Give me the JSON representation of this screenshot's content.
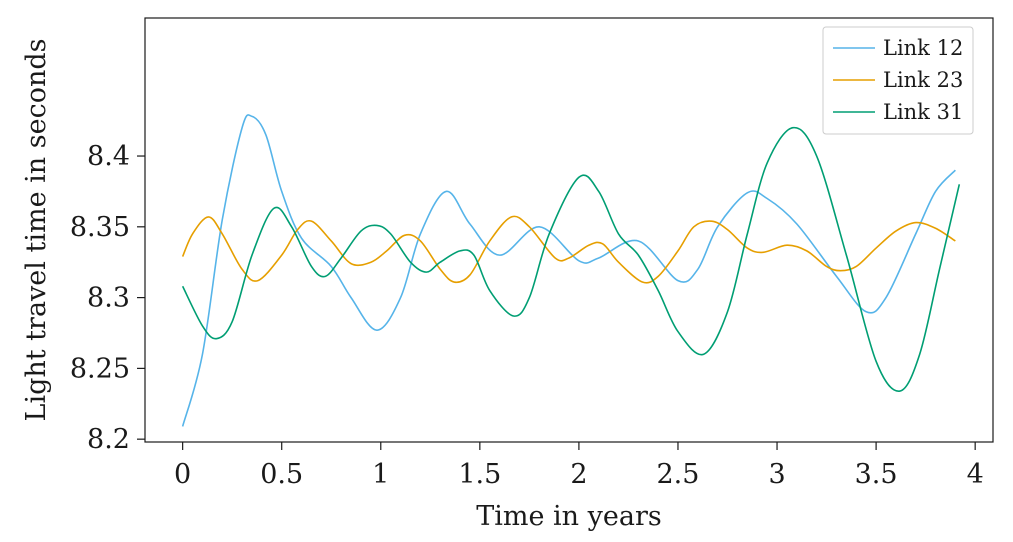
{
  "chart_data": {
    "type": "line",
    "xlabel": "Time in years",
    "ylabel": "Light travel time in seconds",
    "xlim": [
      -0.19,
      4.09
    ],
    "ylim": [
      8.198,
      8.4975
    ],
    "xticks": [
      0,
      0.5,
      1,
      1.5,
      2,
      2.5,
      3,
      3.5,
      4
    ],
    "xtick_labels": [
      "0",
      "0.5",
      "1",
      "1.5",
      "2",
      "2.5",
      "3",
      "3.5",
      "4"
    ],
    "yticks": [
      8.2,
      8.25,
      8.3,
      8.35,
      8.4
    ],
    "ytick_labels": [
      "8.2",
      "8.25",
      "8.3",
      "8.35",
      "8.4"
    ],
    "grid": false,
    "legend_position": "top-right",
    "series": [
      {
        "name": "Link 12",
        "color": "#56B4E9",
        "points": [
          [
            0.0,
            8.209
          ],
          [
            0.1,
            8.26
          ],
          [
            0.2,
            8.355
          ],
          [
            0.3,
            8.42
          ],
          [
            0.35,
            8.428
          ],
          [
            0.42,
            8.415
          ],
          [
            0.5,
            8.375
          ],
          [
            0.6,
            8.342
          ],
          [
            0.75,
            8.322
          ],
          [
            0.85,
            8.3
          ],
          [
            0.98,
            8.277
          ],
          [
            1.1,
            8.3
          ],
          [
            1.2,
            8.345
          ],
          [
            1.33,
            8.375
          ],
          [
            1.45,
            8.352
          ],
          [
            1.6,
            8.33
          ],
          [
            1.8,
            8.35
          ],
          [
            2.0,
            8.326
          ],
          [
            2.1,
            8.328
          ],
          [
            2.3,
            8.34
          ],
          [
            2.5,
            8.312
          ],
          [
            2.6,
            8.32
          ],
          [
            2.7,
            8.35
          ],
          [
            2.85,
            8.374
          ],
          [
            2.95,
            8.37
          ],
          [
            3.1,
            8.352
          ],
          [
            3.3,
            8.315
          ],
          [
            3.45,
            8.29
          ],
          [
            3.55,
            8.3
          ],
          [
            3.7,
            8.345
          ],
          [
            3.8,
            8.375
          ],
          [
            3.9,
            8.39
          ]
        ]
      },
      {
        "name": "Link 23",
        "color": "#E69F00",
        "points": [
          [
            0.0,
            8.329
          ],
          [
            0.05,
            8.345
          ],
          [
            0.13,
            8.357
          ],
          [
            0.2,
            8.345
          ],
          [
            0.3,
            8.32
          ],
          [
            0.38,
            8.312
          ],
          [
            0.5,
            8.33
          ],
          [
            0.58,
            8.348
          ],
          [
            0.65,
            8.354
          ],
          [
            0.75,
            8.34
          ],
          [
            0.85,
            8.324
          ],
          [
            0.95,
            8.325
          ],
          [
            1.03,
            8.333
          ],
          [
            1.12,
            8.344
          ],
          [
            1.2,
            8.34
          ],
          [
            1.3,
            8.32
          ],
          [
            1.37,
            8.311
          ],
          [
            1.45,
            8.316
          ],
          [
            1.55,
            8.34
          ],
          [
            1.66,
            8.357
          ],
          [
            1.75,
            8.35
          ],
          [
            1.88,
            8.328
          ],
          [
            1.95,
            8.328
          ],
          [
            2.05,
            8.337
          ],
          [
            2.12,
            8.338
          ],
          [
            2.2,
            8.325
          ],
          [
            2.32,
            8.311
          ],
          [
            2.4,
            8.315
          ],
          [
            2.5,
            8.333
          ],
          [
            2.58,
            8.35
          ],
          [
            2.67,
            8.354
          ],
          [
            2.75,
            8.348
          ],
          [
            2.85,
            8.335
          ],
          [
            2.93,
            8.332
          ],
          [
            3.05,
            8.337
          ],
          [
            3.15,
            8.333
          ],
          [
            3.25,
            8.322
          ],
          [
            3.32,
            8.319
          ],
          [
            3.4,
            8.322
          ],
          [
            3.5,
            8.335
          ],
          [
            3.6,
            8.347
          ],
          [
            3.7,
            8.353
          ],
          [
            3.8,
            8.349
          ],
          [
            3.9,
            8.34
          ]
        ]
      },
      {
        "name": "Link 31",
        "color": "#009E73",
        "points": [
          [
            0.0,
            8.308
          ],
          [
            0.1,
            8.28
          ],
          [
            0.17,
            8.271
          ],
          [
            0.25,
            8.283
          ],
          [
            0.35,
            8.33
          ],
          [
            0.46,
            8.363
          ],
          [
            0.55,
            8.35
          ],
          [
            0.65,
            8.322
          ],
          [
            0.72,
            8.315
          ],
          [
            0.8,
            8.328
          ],
          [
            0.9,
            8.347
          ],
          [
            0.98,
            8.351
          ],
          [
            1.05,
            8.345
          ],
          [
            1.15,
            8.325
          ],
          [
            1.23,
            8.318
          ],
          [
            1.3,
            8.325
          ],
          [
            1.4,
            8.333
          ],
          [
            1.47,
            8.33
          ],
          [
            1.55,
            8.305
          ],
          [
            1.67,
            8.287
          ],
          [
            1.75,
            8.3
          ],
          [
            1.85,
            8.345
          ],
          [
            2.0,
            8.385
          ],
          [
            2.1,
            8.375
          ],
          [
            2.2,
            8.345
          ],
          [
            2.3,
            8.33
          ],
          [
            2.4,
            8.305
          ],
          [
            2.5,
            8.276
          ],
          [
            2.63,
            8.26
          ],
          [
            2.75,
            8.29
          ],
          [
            2.85,
            8.345
          ],
          [
            2.95,
            8.395
          ],
          [
            3.08,
            8.42
          ],
          [
            3.2,
            8.4
          ],
          [
            3.35,
            8.33
          ],
          [
            3.5,
            8.255
          ],
          [
            3.62,
            8.234
          ],
          [
            3.72,
            8.26
          ],
          [
            3.82,
            8.32
          ],
          [
            3.92,
            8.38
          ]
        ]
      }
    ]
  }
}
